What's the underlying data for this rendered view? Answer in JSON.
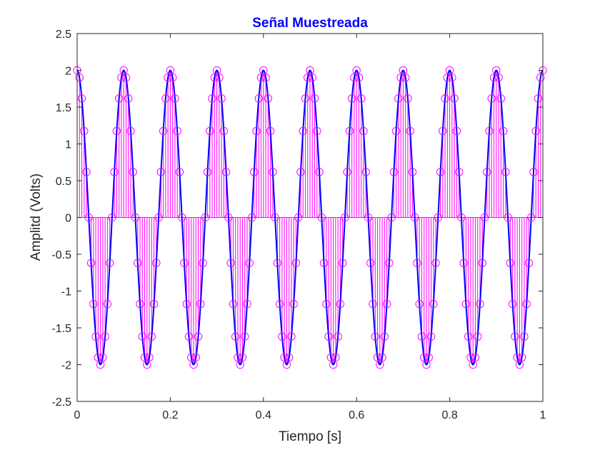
{
  "chart_data": {
    "type": "line",
    "title": "Señal Muestreada",
    "xlabel": "Tiempo [s]",
    "ylabel": "Amplitd (Volts)",
    "xlim": [
      0,
      1
    ],
    "ylim": [
      -2.5,
      2.5
    ],
    "x_ticks": [
      "0",
      "0.2",
      "0.4",
      "0.6",
      "0.8",
      "1"
    ],
    "y_ticks": [
      "-2.5",
      "-2",
      "-1.5",
      "-1",
      "-0.5",
      "0",
      "0.5",
      "1",
      "1.5",
      "2",
      "2.5"
    ],
    "grid": false,
    "legend": "none",
    "signal": {
      "function": "cosine",
      "amplitude": 2,
      "frequency_hz": 10,
      "phase_rad": 0
    },
    "sampling": {
      "t_start": 0,
      "t_end": 1,
      "interval_s": 0.005,
      "marker": "circle",
      "display": "stem"
    },
    "colors": {
      "title": "#0000ff",
      "continuous_signal": "#0000ff",
      "samples": "#ff00ff",
      "axes": "#262626",
      "background": "#ffffff"
    }
  }
}
